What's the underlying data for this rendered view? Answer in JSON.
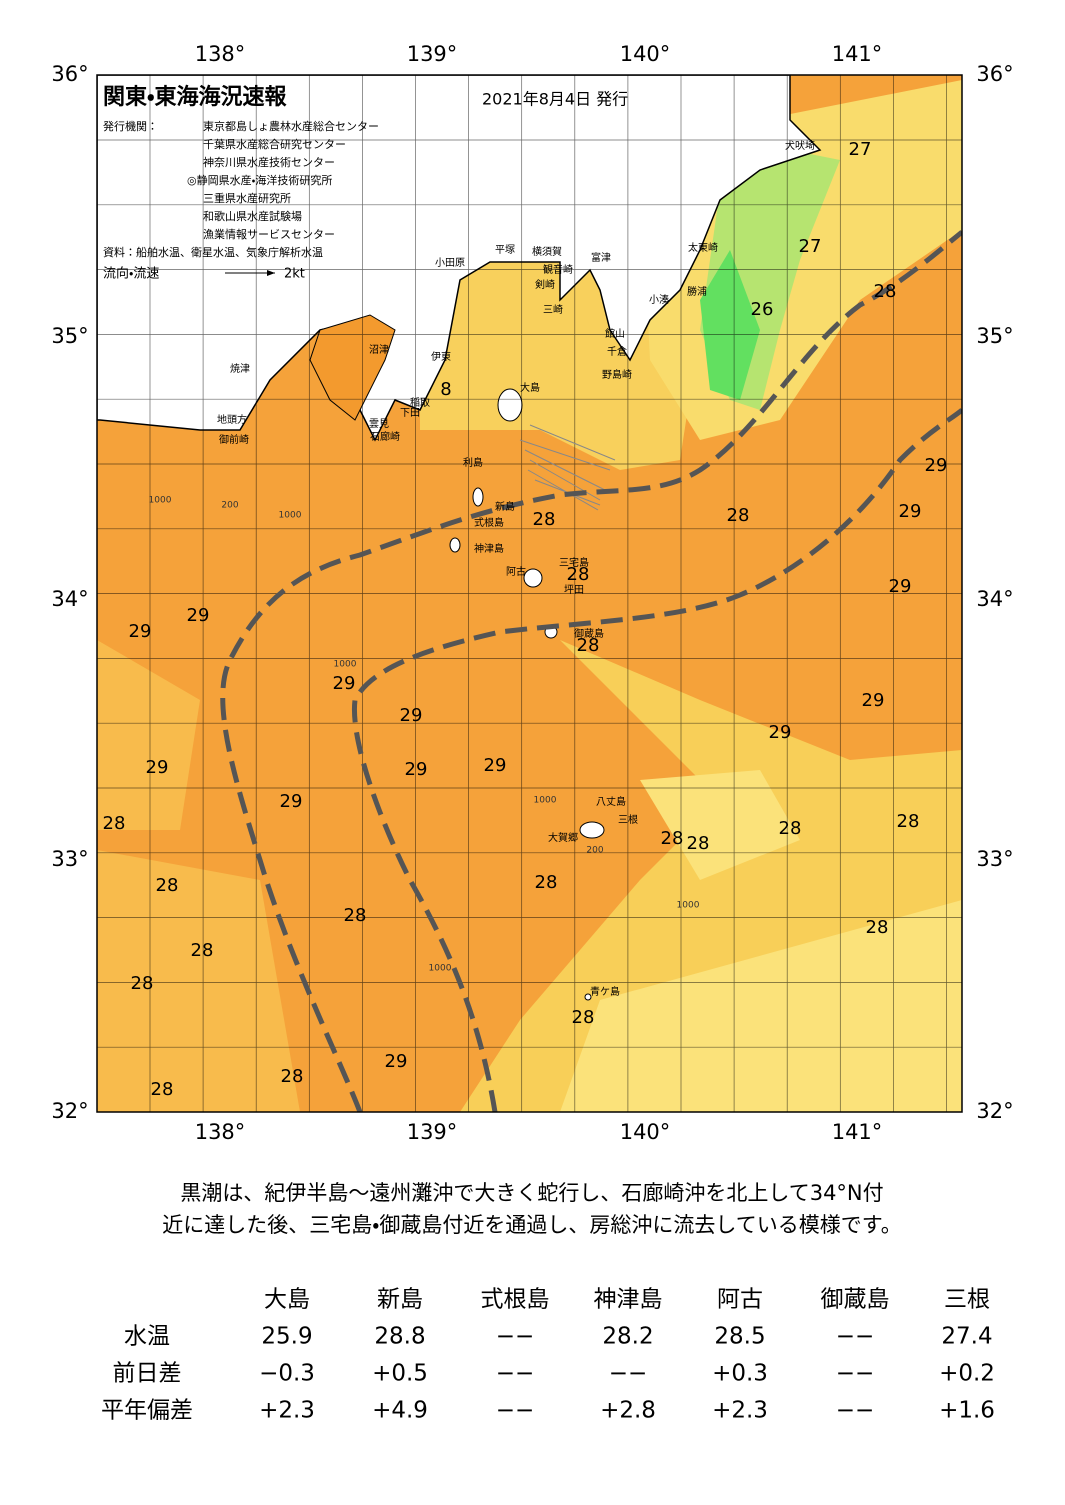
{
  "header": {
    "title": "関東・東海海況速報",
    "date": "2021年8月4日 発行",
    "issuer_label": "発行機関：",
    "issuers": [
      "東京都島しょ農林水産総合センター",
      "千葉県水産総合研究センター",
      "神奈川県水産技術センター",
      "◎静岡県水産・海洋技術研究所",
      "三重県水産研究所",
      "和歌山県水産試験場",
      "漁業情報サービスセンター"
    ],
    "sources": "資料：船舶水温、衛星水温、気象庁解析水温",
    "current_legend": "流向・流速",
    "current_scale": "2kt"
  },
  "map": {
    "longitude_labels": [
      "138°",
      "139°",
      "140°",
      "141°"
    ],
    "latitude_labels": [
      "36°",
      "35°",
      "34°",
      "33°",
      "32°"
    ],
    "temperature_labels": [
      "27",
      "27",
      "28",
      "26",
      "8",
      "29",
      "29",
      "28",
      "28",
      "28",
      "29",
      "29",
      "29",
      "28",
      "29",
      "29",
      "29",
      "29",
      "29",
      "29",
      "29",
      "29",
      "28",
      "28",
      "28",
      "28",
      "28",
      "28",
      "28",
      "28",
      "28",
      "28",
      "28",
      "28",
      "29",
      "28",
      "28"
    ],
    "place_names": [
      "犬吠埼",
      "太東崎",
      "勝浦",
      "小湊",
      "富津",
      "横須賀",
      "平塚",
      "小田原",
      "観音崎",
      "剣崎",
      "三崎",
      "館山",
      "千倉",
      "野島崎",
      "沼津",
      "伊東",
      "焼津",
      "大島",
      "稲取",
      "下田",
      "地頭方",
      "雲見",
      "御前崎",
      "石廊崎",
      "利島",
      "新島",
      "式根島",
      "神津島",
      "阿古",
      "三宅島",
      "坪田",
      "御蔵島",
      "八丈島",
      "三根",
      "大賀郷",
      "青ケ島"
    ],
    "contour_labels": [
      "1000",
      "200",
      "1000",
      "1000",
      "1000",
      "200",
      "1000",
      "1000"
    ]
  },
  "summary": [
    "黒潮は、紀伊半島～遠州灘沖で大きく蛇行し、石廊崎沖を北上して34°N付",
    "近に達した後、三宅島・御蔵島付近を通過し、房総沖に流去している模様です。"
  ],
  "table": {
    "columns": [
      "大島",
      "新島",
      "式根島",
      "神津島",
      "阿古",
      "御蔵島",
      "三根"
    ],
    "rows": [
      {
        "label": "水温",
        "values": [
          "25.9",
          "28.8",
          "−−",
          "28.2",
          "28.5",
          "−−",
          "27.4"
        ]
      },
      {
        "label": "前日差",
        "values": [
          "−0.3",
          "+0.5",
          "−−",
          "−−",
          "+0.3",
          "−−",
          "+0.2"
        ]
      },
      {
        "label": "平年偏差",
        "values": [
          "+2.3",
          "+4.9",
          "−−",
          "+2.8",
          "+2.3",
          "−−",
          "+1.6"
        ]
      }
    ]
  }
}
